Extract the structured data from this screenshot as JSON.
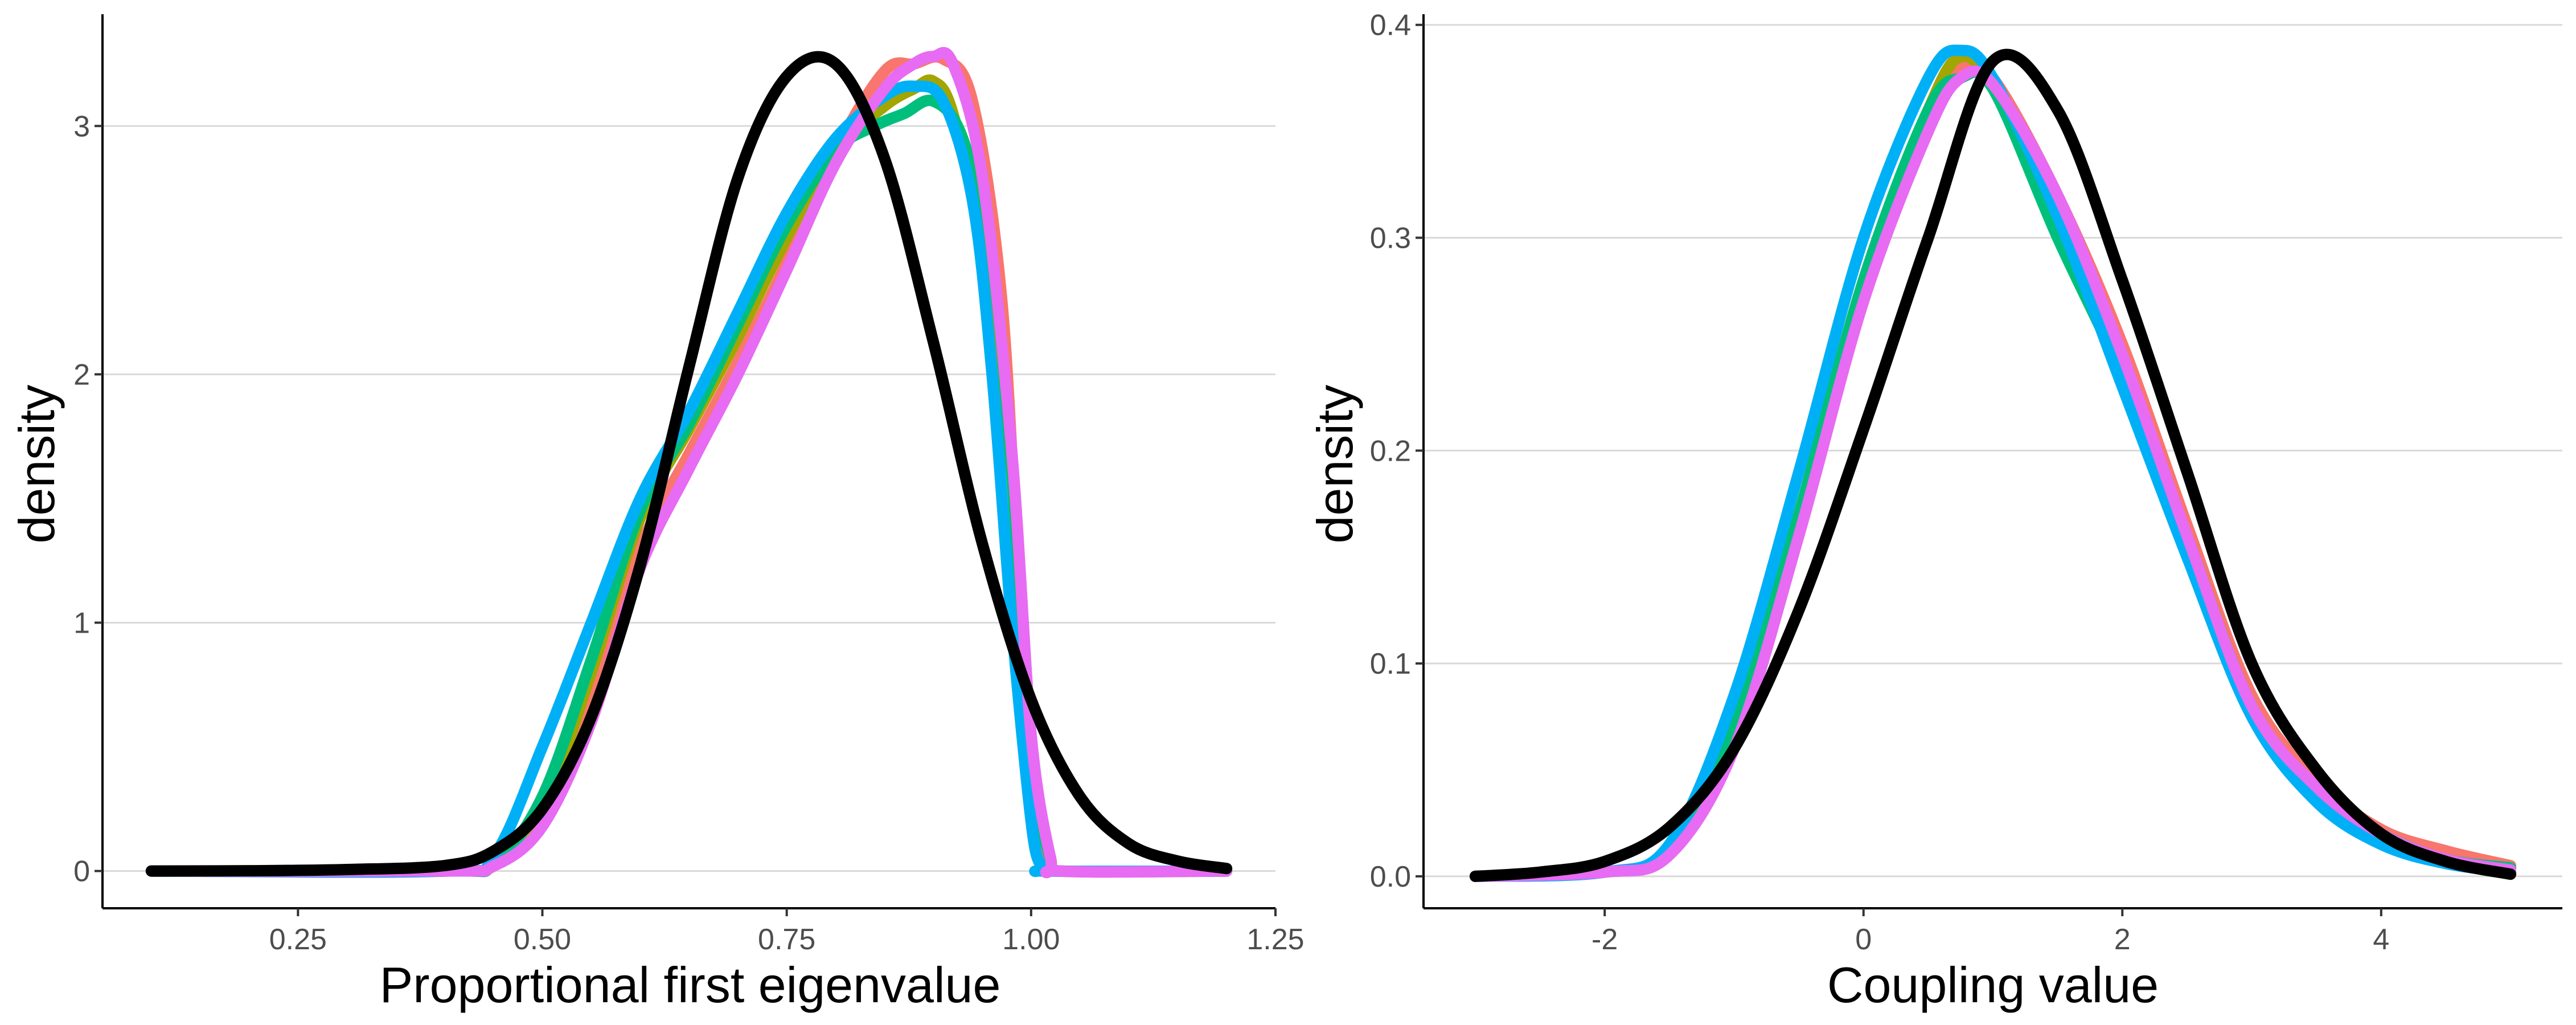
{
  "chart_data": [
    {
      "type": "line",
      "title": "",
      "xlabel": "Proportional first eigenvalue",
      "ylabel": "density",
      "xlim": [
        0.05,
        1.25
      ],
      "ylim": [
        -0.15,
        3.45
      ],
      "x_ticks": [
        0.25,
        0.5,
        0.75,
        1.0,
        1.25
      ],
      "x_tick_labels": [
        "0.25",
        "0.50",
        "0.75",
        "1.00",
        "1.25"
      ],
      "y_ticks": [
        0,
        1,
        2,
        3
      ],
      "y_tick_labels": [
        "0",
        "1",
        "2",
        "3"
      ],
      "grid": "horizontal-major",
      "legend": "none",
      "series": [
        {
          "color": "#F8766D",
          "x": [
            0.1,
            0.4,
            0.45,
            0.5,
            0.55,
            0.6,
            0.65,
            0.7,
            0.75,
            0.8,
            0.85,
            0.88,
            0.91,
            0.94,
            0.97,
            0.99,
            1.01,
            1.02,
            1.03,
            1.2
          ],
          "y": [
            0,
            0,
            0.02,
            0.2,
            0.7,
            1.3,
            1.68,
            2.05,
            2.45,
            2.9,
            3.22,
            3.25,
            3.27,
            3.1,
            2.3,
            1.0,
            0.15,
            0.02,
            0,
            0
          ]
        },
        {
          "color": "#A3A500",
          "x": [
            0.1,
            0.4,
            0.45,
            0.5,
            0.55,
            0.6,
            0.65,
            0.7,
            0.75,
            0.8,
            0.85,
            0.88,
            0.9,
            0.92,
            0.95,
            0.98,
            1.0,
            1.02,
            1.03,
            1.2
          ],
          "y": [
            0,
            0,
            0.03,
            0.25,
            0.8,
            1.42,
            1.78,
            2.15,
            2.55,
            2.9,
            3.08,
            3.15,
            3.18,
            3.05,
            2.5,
            1.6,
            0.5,
            0.05,
            0,
            0
          ]
        },
        {
          "color": "#00BF7D",
          "x": [
            0.1,
            0.4,
            0.45,
            0.5,
            0.55,
            0.6,
            0.65,
            0.7,
            0.75,
            0.8,
            0.84,
            0.87,
            0.9,
            0.93,
            0.96,
            0.98,
            1.0,
            1.02,
            1.03,
            1.2
          ],
          "y": [
            0,
            0,
            0.03,
            0.3,
            0.85,
            1.45,
            1.8,
            2.2,
            2.6,
            2.9,
            3.0,
            3.05,
            3.1,
            2.95,
            2.45,
            1.6,
            0.45,
            0.04,
            0,
            0
          ]
        },
        {
          "color": "#00B0F6",
          "x": [
            0.1,
            0.4,
            0.45,
            0.5,
            0.55,
            0.6,
            0.65,
            0.7,
            0.75,
            0.8,
            0.85,
            0.88,
            0.91,
            0.94,
            0.96,
            0.98,
            1.0,
            1.01,
            1.02,
            1.2
          ],
          "y": [
            0,
            0,
            0.06,
            0.5,
            1.0,
            1.5,
            1.85,
            2.25,
            2.65,
            2.95,
            3.12,
            3.16,
            3.1,
            2.7,
            2.0,
            1.0,
            0.2,
            0.02,
            0,
            0
          ]
        },
        {
          "color": "#E76BF3",
          "x": [
            0.1,
            0.4,
            0.45,
            0.5,
            0.55,
            0.6,
            0.65,
            0.7,
            0.75,
            0.8,
            0.85,
            0.88,
            0.9,
            0.92,
            0.95,
            0.98,
            1.0,
            1.02,
            1.03,
            1.2
          ],
          "y": [
            0,
            0,
            0.02,
            0.18,
            0.6,
            1.22,
            1.62,
            2.0,
            2.42,
            2.85,
            3.15,
            3.25,
            3.28,
            3.25,
            2.8,
            1.7,
            0.55,
            0.05,
            0,
            0
          ]
        },
        {
          "color": "#000000",
          "x": [
            0.1,
            0.2,
            0.3,
            0.4,
            0.45,
            0.5,
            0.55,
            0.6,
            0.65,
            0.7,
            0.75,
            0.8,
            0.85,
            0.9,
            0.95,
            1.0,
            1.05,
            1.1,
            1.15,
            1.2
          ],
          "y": [
            0,
            0.001,
            0.006,
            0.022,
            0.08,
            0.25,
            0.62,
            1.23,
            2.03,
            2.79,
            3.2,
            3.25,
            2.87,
            2.13,
            1.32,
            0.69,
            0.3,
            0.11,
            0.04,
            0.01
          ]
        }
      ]
    },
    {
      "type": "line",
      "title": "",
      "xlabel": "Coupling value",
      "ylabel": "density",
      "xlim": [
        -3.4,
        5.4
      ],
      "ylim": [
        -0.015,
        0.405
      ],
      "x_ticks": [
        -2,
        0,
        2,
        4
      ],
      "x_tick_labels": [
        "-2",
        "0",
        "2",
        "4"
      ],
      "y_ticks": [
        0.0,
        0.1,
        0.2,
        0.3,
        0.4
      ],
      "y_tick_labels": [
        "0.0",
        "0.1",
        "0.2",
        "0.3",
        "0.4"
      ],
      "grid": "horizontal-major",
      "legend": "none",
      "series": [
        {
          "color": "#F8766D",
          "x": [
            -3,
            -2,
            -1.5,
            -1,
            -0.5,
            0,
            0.5,
            0.75,
            1,
            1.5,
            2,
            2.5,
            3,
            3.5,
            4,
            4.5,
            5
          ],
          "y": [
            0,
            0.002,
            0.012,
            0.07,
            0.17,
            0.28,
            0.36,
            0.38,
            0.375,
            0.32,
            0.25,
            0.165,
            0.085,
            0.045,
            0.022,
            0.012,
            0.005
          ]
        },
        {
          "color": "#A3A500",
          "x": [
            -3,
            -2,
            -1.5,
            -1,
            -0.5,
            0,
            0.5,
            0.75,
            1,
            1.5,
            2,
            2.5,
            3,
            3.5,
            4,
            4.5,
            5
          ],
          "y": [
            0,
            0.002,
            0.012,
            0.072,
            0.17,
            0.28,
            0.36,
            0.385,
            0.37,
            0.31,
            0.24,
            0.16,
            0.08,
            0.04,
            0.02,
            0.008,
            0.004
          ]
        },
        {
          "color": "#00BF7D",
          "x": [
            -3,
            -2,
            -1.5,
            -1,
            -0.5,
            0,
            0.5,
            0.75,
            1,
            1.5,
            2,
            2.5,
            3,
            3.5,
            4,
            4.5,
            5
          ],
          "y": [
            0,
            0.002,
            0.012,
            0.072,
            0.17,
            0.28,
            0.36,
            0.375,
            0.37,
            0.3,
            0.235,
            0.158,
            0.08,
            0.04,
            0.02,
            0.008,
            0.004
          ]
        },
        {
          "color": "#00B0F6",
          "x": [
            -3,
            -2,
            -1.5,
            -1,
            -0.5,
            0,
            0.5,
            0.75,
            1,
            1.5,
            2,
            2.5,
            3,
            3.5,
            4,
            4.5,
            5
          ],
          "y": [
            0,
            0.002,
            0.015,
            0.085,
            0.19,
            0.3,
            0.375,
            0.388,
            0.375,
            0.31,
            0.23,
            0.15,
            0.075,
            0.035,
            0.015,
            0.006,
            0.002
          ]
        },
        {
          "color": "#E76BF3",
          "x": [
            -3,
            -2,
            -1.5,
            -1,
            -0.5,
            0,
            0.5,
            0.75,
            1,
            1.5,
            2,
            2.5,
            3,
            3.5,
            4,
            4.5,
            5
          ],
          "y": [
            0,
            0.002,
            0.01,
            0.06,
            0.16,
            0.27,
            0.35,
            0.375,
            0.372,
            0.32,
            0.245,
            0.16,
            0.08,
            0.042,
            0.02,
            0.008,
            0.003
          ]
        },
        {
          "color": "#000000",
          "x": [
            -3,
            -2.5,
            -2,
            -1.5,
            -1,
            -0.5,
            0,
            0.5,
            1,
            1.5,
            2,
            2.5,
            3,
            3.5,
            4,
            4.5,
            5
          ],
          "y": [
            0,
            0.002,
            0.007,
            0.023,
            0.06,
            0.125,
            0.21,
            0.3,
            0.383,
            0.36,
            0.28,
            0.19,
            0.1,
            0.05,
            0.02,
            0.007,
            0.001
          ]
        }
      ]
    }
  ]
}
